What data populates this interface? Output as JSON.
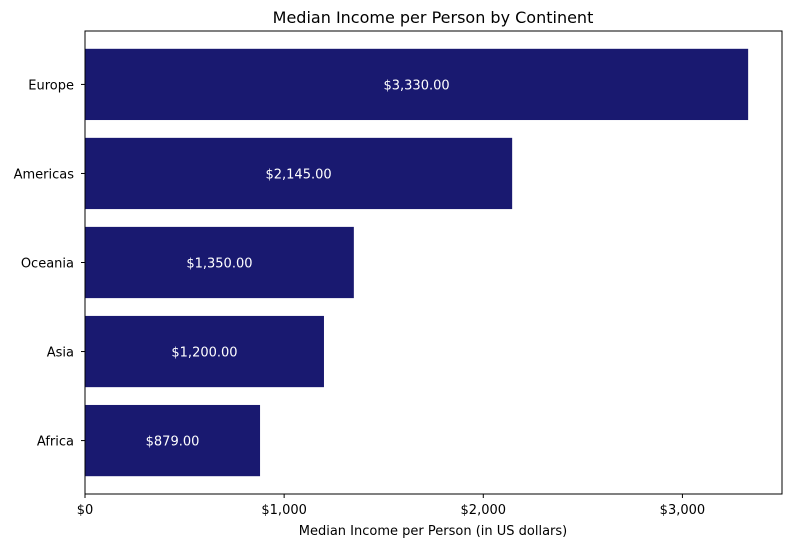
{
  "chart_data": {
    "type": "bar",
    "orientation": "horizontal",
    "title": "Median Income per Person by Continent",
    "xlabel": "Median Income per Person (in US dollars)",
    "ylabel": "",
    "categories": [
      "Africa",
      "Asia",
      "Oceania",
      "Americas",
      "Europe"
    ],
    "values": [
      879,
      1200,
      1350,
      2145,
      3330
    ],
    "data_labels": [
      "$879.00",
      "$1,200.00",
      "$1,350.00",
      "$2,145.00",
      "$3,330.00"
    ],
    "xlim": [
      0,
      3500
    ],
    "xticks": [
      0,
      1000,
      2000,
      3000
    ],
    "xtick_labels": [
      "$0",
      "$1,000",
      "$2,000",
      "$3,000"
    ],
    "bar_color": "#191970",
    "grid": false,
    "legend": false
  }
}
